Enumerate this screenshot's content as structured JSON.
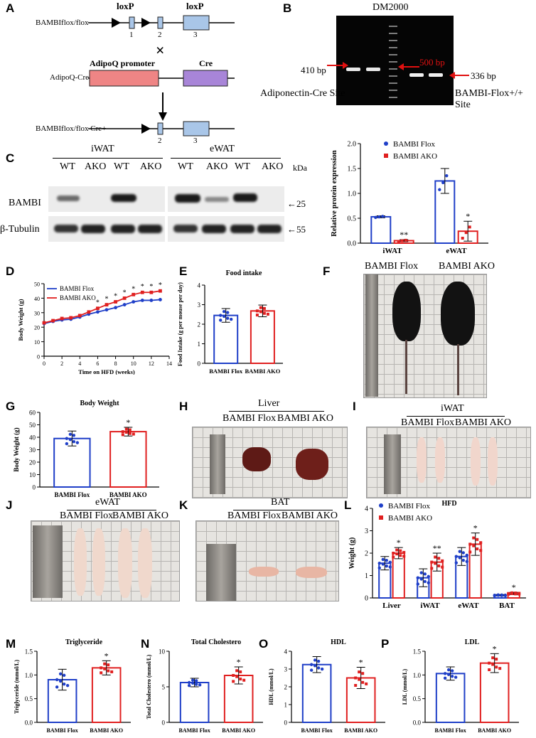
{
  "panels": {
    "A": "A",
    "B": "B",
    "C": "C",
    "D": "D",
    "E": "E",
    "F": "F",
    "G": "G",
    "H": "H",
    "I": "I",
    "J": "J",
    "K": "K",
    "L": "L",
    "M": "M",
    "N": "N",
    "O": "O",
    "P": "P"
  },
  "panelA": {
    "loxp1": "loxP",
    "loxp2": "loxP",
    "flox_label": "BAMBIflox/flox",
    "exons": [
      "1",
      "2",
      "3"
    ],
    "cross": "×",
    "adipoq_label": "AdipoQ-Cre",
    "promoter": "AdipoQ promoter",
    "cre": "Cre",
    "result_label": "BAMBIflox/flox Cre+",
    "result_exons": [
      "2",
      "3"
    ]
  },
  "panelB": {
    "title": "DM2000",
    "band410": "410 bp",
    "band500": "500 bp",
    "band336": "336 bp",
    "site1": "Adiponectin-Cre Site",
    "site2": "BAMBI-Flox+/+ Site"
  },
  "panelC": {
    "group1": "iWAT",
    "group2": "eWAT",
    "lanes": [
      "WT",
      "AKO",
      "WT",
      "AKO"
    ],
    "kda": "kDa",
    "row1": "BAMBI",
    "row2": "β-Tubulin",
    "mw1": "25",
    "mw2": "55"
  },
  "colors": {
    "flox": "#1f3fc8",
    "ako": "#e02020"
  },
  "chart_data": [
    {
      "id": "C",
      "type": "bar",
      "ylabel": "Relative protein expression",
      "categories": [
        "iWAT",
        "eWAT"
      ],
      "series": [
        {
          "name": "BAMBI Flox",
          "values": [
            0.53,
            1.25
          ],
          "err": [
            0.02,
            0.25
          ]
        },
        {
          "name": "BAMBI AKO",
          "values": [
            0.05,
            0.24
          ],
          "err": [
            0.02,
            0.2
          ]
        }
      ],
      "ylim": [
        0,
        2.0
      ],
      "yticks": [
        "0.0",
        "0.5",
        "1.0",
        "1.5",
        "2.0"
      ],
      "sig": [
        "**",
        "*"
      ],
      "legend": "top-right"
    },
    {
      "id": "D",
      "type": "line",
      "xlabel": "Time on HFD (weeks)",
      "ylabel": "Body Weight (g)",
      "xlim": [
        0,
        14
      ],
      "ylim": [
        0,
        50
      ],
      "xticks": [
        "0",
        "2",
        "4",
        "6",
        "8",
        "10",
        "12",
        "14"
      ],
      "yticks": [
        "0",
        "10",
        "20",
        "30",
        "40",
        "50"
      ],
      "x": [
        0,
        1,
        2,
        3,
        4,
        5,
        6,
        7,
        8,
        9,
        10,
        11,
        12,
        13
      ],
      "series": [
        {
          "name": "BAMBI Flox",
          "values": [
            22.5,
            24,
            25,
            25.5,
            27,
            29,
            30.5,
            32,
            33.5,
            35.5,
            37.5,
            38.5,
            38.5,
            39
          ]
        },
        {
          "name": "BAMBI AKO",
          "values": [
            23,
            24.5,
            26,
            26.5,
            28,
            30.5,
            33,
            35.5,
            37.5,
            40,
            42.5,
            44,
            44,
            45
          ]
        }
      ],
      "sig": [
        "",
        "",
        "",
        "",
        "",
        "",
        "*",
        "*",
        "*",
        "*",
        "*",
        "*",
        "*",
        "*"
      ],
      "legend": "top-left"
    },
    {
      "id": "E",
      "type": "bar",
      "title": "Food intake",
      "ylabel": "Food Intake (g per mouse per day)",
      "categories": [
        "BAMBI Flox",
        "BAMBI AKO"
      ],
      "values": [
        2.45,
        2.68
      ],
      "err": [
        0.35,
        0.3
      ],
      "ylim": [
        0,
        4
      ],
      "yticks": [
        "0",
        "1",
        "2",
        "3",
        "4"
      ]
    },
    {
      "id": "G",
      "type": "bar",
      "title": "Body Weight",
      "ylabel": "Body Weight (g)",
      "categories": [
        "BAMBI Flox",
        "BAMBI AKO"
      ],
      "values": [
        39,
        44.5
      ],
      "err": [
        6,
        3.5
      ],
      "ylim": [
        0,
        60
      ],
      "yticks": [
        "0",
        "10",
        "20",
        "30",
        "40",
        "50",
        "60"
      ],
      "sig": [
        "",
        "*"
      ]
    },
    {
      "id": "L",
      "type": "bar",
      "title": "HFD",
      "ylabel": "Weight (g)",
      "categories": [
        "Liver",
        "iWAT",
        "eWAT",
        "BAT"
      ],
      "series": [
        {
          "name": "BAMBI Flox",
          "values": [
            1.55,
            0.9,
            1.85,
            0.12
          ],
          "err": [
            0.3,
            0.4,
            0.4,
            0.03
          ]
        },
        {
          "name": "BAMBI AKO",
          "values": [
            2.0,
            1.6,
            2.4,
            0.2
          ],
          "err": [
            0.25,
            0.4,
            0.5,
            0.05
          ]
        }
      ],
      "ylim": [
        0,
        4
      ],
      "yticks": [
        "0",
        "1",
        "2",
        "3",
        "4"
      ],
      "sig": [
        "*",
        "**",
        "*",
        "*"
      ],
      "legend": "top-left"
    },
    {
      "id": "M",
      "type": "bar",
      "title": "Triglyceride",
      "ylabel": "Triglyceride (mmol/L)",
      "categories": [
        "BAMBI Flox",
        "BAMBI AKO"
      ],
      "values": [
        0.9,
        1.15
      ],
      "err": [
        0.22,
        0.15
      ],
      "ylim": [
        0,
        1.5
      ],
      "yticks": [
        "0.0",
        "0.5",
        "1.0",
        "1.5"
      ],
      "sig": [
        "",
        "*"
      ]
    },
    {
      "id": "N",
      "type": "bar",
      "title": "Total Cholestero",
      "ylabel": "Total Cholestero (mmol/L)",
      "categories": [
        "BAMBI Flox",
        "BAMBI AKO"
      ],
      "values": [
        5.6,
        6.6
      ],
      "err": [
        0.6,
        1.2
      ],
      "ylim": [
        0,
        10
      ],
      "yticks": [
        "0",
        "5",
        "10"
      ],
      "sig": [
        "",
        "*"
      ]
    },
    {
      "id": "O",
      "type": "bar",
      "title": "HDL",
      "ylabel": "HDL (mmol/L)",
      "categories": [
        "BAMBI Flox",
        "BAMBI AKO"
      ],
      "values": [
        3.25,
        2.5
      ],
      "err": [
        0.45,
        0.6
      ],
      "ylim": [
        0,
        4
      ],
      "yticks": [
        "0",
        "1",
        "2",
        "3",
        "4"
      ],
      "sig": [
        "",
        "*"
      ]
    },
    {
      "id": "P",
      "type": "bar",
      "title": "LDL",
      "ylabel": "LDL (mmol/L)",
      "categories": [
        "BAMBI Flox",
        "BAMBI AKO"
      ],
      "values": [
        1.03,
        1.25
      ],
      "err": [
        0.14,
        0.2
      ],
      "ylim": [
        0,
        1.5
      ],
      "yticks": [
        "0.0",
        "0.5",
        "1.0",
        "1.5"
      ],
      "sig": [
        "",
        "*"
      ]
    }
  ],
  "panelF": {
    "flox": "BAMBI Flox",
    "ako": "BAMBI AKO"
  },
  "panelH": {
    "title": "Liver",
    "flox": "BAMBI Flox",
    "ako": "BAMBI AKO"
  },
  "panelI": {
    "title": "iWAT",
    "flox": "BAMBI Flox",
    "ako": "BAMBI AKO"
  },
  "panelJ": {
    "title": "eWAT",
    "flox": "BAMBI Flox",
    "ako": "BAMBI AKO"
  },
  "panelK": {
    "title": "BAT",
    "flox": "BAMBI Flox",
    "ako": "BAMBI AKO"
  },
  "legend": {
    "flox": "BAMBI Flox",
    "ako": "BAMBI AKO"
  }
}
